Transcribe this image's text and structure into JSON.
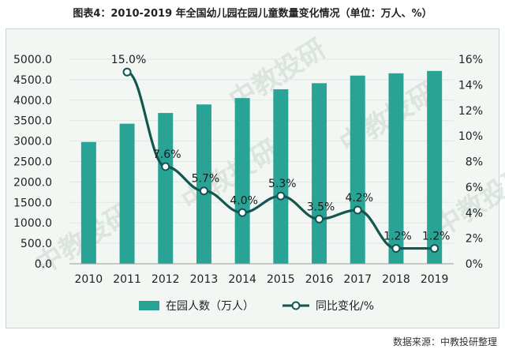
{
  "title": "图表4：2010-2019 年全国幼儿园在园儿童数量变化情况（单位：万人、%）",
  "source": "数据来源：中教投研整理",
  "watermark": "中教投研",
  "colors": {
    "bar": "#2aa397",
    "line": "#13564f",
    "marker_fill": "#ffffff"
  },
  "chart_data": {
    "type": "bar",
    "categories": [
      "2010",
      "2011",
      "2012",
      "2013",
      "2014",
      "2015",
      "2016",
      "2017",
      "2018",
      "2019"
    ],
    "series": [
      {
        "name": "在园人数（万人）",
        "type": "bar",
        "axis": "left",
        "values": [
          2977,
          3424,
          3686,
          3895,
          4051,
          4265,
          4414,
          4600,
          4656,
          4714
        ]
      },
      {
        "name": "同比变化/%",
        "type": "line",
        "axis": "right",
        "values": [
          null,
          15.0,
          7.6,
          5.7,
          4.0,
          5.3,
          3.5,
          4.2,
          1.2,
          1.2
        ],
        "labels": [
          "",
          "15.0%",
          "7.6%",
          "5.7%",
          "4.0%",
          "5.3%",
          "3.5%",
          "4.2%",
          "1.2%",
          "1.2%"
        ]
      }
    ],
    "y_left": {
      "ylim": [
        0,
        5000
      ],
      "ticks": [
        "0.0",
        "500.0",
        "1000.0",
        "1500.0",
        "2000.0",
        "2500.0",
        "3000.0",
        "3500.0",
        "4000.0",
        "4500.0",
        "5000.0"
      ]
    },
    "y_right": {
      "ylim": [
        0,
        16
      ],
      "ticks": [
        "0%",
        "2%",
        "4%",
        "6%",
        "8%",
        "10%",
        "12%",
        "14%",
        "16%"
      ]
    },
    "grid": true,
    "legend_position": "bottom"
  }
}
